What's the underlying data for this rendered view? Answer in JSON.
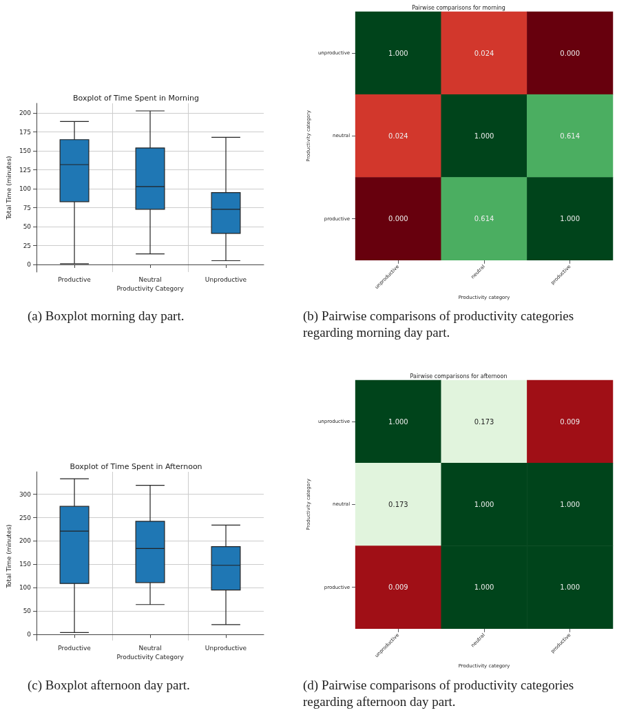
{
  "chart_data": [
    {
      "type": "box",
      "title": "Boxplot of Time Spent in Morning",
      "xlabel": "Productivity Category",
      "ylabel": "Total Time (minutes)",
      "categories": [
        "Productive",
        "Neutral",
        "Unproductive"
      ],
      "series": [
        {
          "color": "#1f77b4",
          "boxes": [
            {
              "low": 1,
              "q1": 83,
              "median": 132,
              "q3": 165,
              "high": 189
            },
            {
              "low": 14,
              "q1": 73,
              "median": 103,
              "q3": 154,
              "high": 203
            },
            {
              "low": 5,
              "q1": 41,
              "median": 73,
              "q3": 95,
              "high": 168
            }
          ]
        }
      ],
      "ylim": [
        -10,
        213
      ],
      "yticks": [
        0,
        25,
        50,
        75,
        100,
        125,
        150,
        175,
        200
      ],
      "grid": true,
      "annotations": [
        "(a) Boxplot morning day part."
      ]
    },
    {
      "type": "heatmap",
      "title": "Pairwise comparisons for morning",
      "xlabel": "Productivity category",
      "ylabel": "Productivity category",
      "categories": [
        "unproductive",
        "neutral",
        "productive"
      ],
      "y_categories": [
        "unproductive",
        "neutral",
        "productive"
      ],
      "cells": [
        [
          1.0,
          0.024,
          0.0
        ],
        [
          0.024,
          1.0,
          0.614
        ],
        [
          0.0,
          0.614,
          1.0
        ]
      ],
      "cell_labels": [
        [
          "1.000",
          "0.024",
          "0.000"
        ],
        [
          "0.024",
          "1.000",
          "0.614"
        ],
        [
          "0.000",
          "0.614",
          "1.000"
        ]
      ],
      "annotations": [
        "(b) Pairwise comparisons of productivity categories regarding morning day part."
      ]
    },
    {
      "type": "box",
      "title": "Boxplot of Time Spent in Afternoon",
      "xlabel": "Productivity Category",
      "ylabel": "Total Time (minutes)",
      "categories": [
        "Productive",
        "Neutral",
        "Unproductive"
      ],
      "series": [
        {
          "color": "#1f77b4",
          "boxes": [
            {
              "low": 4,
              "q1": 109,
              "median": 221,
              "q3": 274,
              "high": 333
            },
            {
              "low": 64,
              "q1": 111,
              "median": 184,
              "q3": 242,
              "high": 319
            },
            {
              "low": 21,
              "q1": 95,
              "median": 148,
              "q3": 188,
              "high": 234
            }
          ]
        }
      ],
      "ylim": [
        -13,
        348
      ],
      "yticks": [
        0,
        50,
        100,
        150,
        200,
        250,
        300
      ],
      "grid": true,
      "annotations": [
        "(c) Boxplot afternoon day part."
      ]
    },
    {
      "type": "heatmap",
      "title": "Pairwise comparisons for afternoon",
      "xlabel": "Productivity category",
      "ylabel": "Productivity category",
      "categories": [
        "unproductive",
        "neutral",
        "productive"
      ],
      "y_categories": [
        "unproductive",
        "neutral",
        "productive"
      ],
      "cells": [
        [
          1.0,
          0.173,
          0.009
        ],
        [
          0.173,
          1.0,
          1.0
        ],
        [
          0.009,
          1.0,
          1.0
        ]
      ],
      "cell_labels": [
        [
          "1.000",
          "0.173",
          "0.009"
        ],
        [
          "0.173",
          "1.000",
          "1.000"
        ],
        [
          "0.009",
          "1.000",
          "1.000"
        ]
      ],
      "annotations": [
        "(d) Pairwise comparisons of productivity categories regarding afternoon day part."
      ]
    }
  ]
}
